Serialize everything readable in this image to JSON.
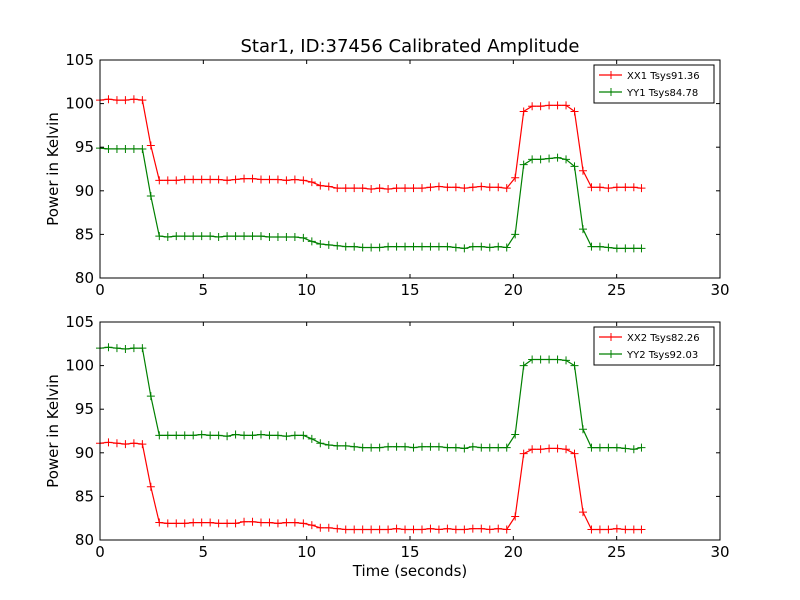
{
  "figure": {
    "title": "Star1, ID:37456 Calibrated Amplitude",
    "xlabel": "Time (seconds)"
  },
  "chart_data": [
    {
      "type": "line",
      "title": "Star1, ID:37456 Calibrated Amplitude",
      "xlabel": "",
      "ylabel": "Power in Kelvin",
      "xlim": [
        0,
        30
      ],
      "ylim": [
        80,
        105
      ],
      "xticks": [
        0,
        5,
        10,
        15,
        20,
        25,
        30
      ],
      "yticks": [
        80,
        85,
        90,
        95,
        100,
        105
      ],
      "grid": false,
      "legend": "top-right",
      "x": [
        0.0,
        0.41,
        0.82,
        1.23,
        1.64,
        2.05,
        2.46,
        2.87,
        3.28,
        3.69,
        4.1,
        4.51,
        4.92,
        5.33,
        5.74,
        6.15,
        6.56,
        6.97,
        7.38,
        7.79,
        8.2,
        8.61,
        9.02,
        9.43,
        9.84,
        10.25,
        10.66,
        11.07,
        11.48,
        11.89,
        12.3,
        12.71,
        13.12,
        13.53,
        13.94,
        14.35,
        14.76,
        15.17,
        15.58,
        15.99,
        16.4,
        16.81,
        17.22,
        17.63,
        18.04,
        18.45,
        18.86,
        19.27,
        19.68,
        20.09,
        20.5,
        20.91,
        21.32,
        21.73,
        22.14,
        22.55,
        22.96,
        23.37,
        23.78,
        24.19,
        24.6,
        25.01,
        25.42,
        25.83,
        26.2
      ],
      "series": [
        {
          "name": "XX1 Tsys91.36",
          "color": "#ff0000",
          "values": [
            100.4,
            100.5,
            100.4,
            100.4,
            100.5,
            100.4,
            95.2,
            91.2,
            91.2,
            91.2,
            91.3,
            91.3,
            91.3,
            91.3,
            91.3,
            91.2,
            91.3,
            91.4,
            91.4,
            91.3,
            91.3,
            91.3,
            91.2,
            91.3,
            91.2,
            91.0,
            90.6,
            90.5,
            90.3,
            90.3,
            90.3,
            90.3,
            90.2,
            90.3,
            90.2,
            90.3,
            90.3,
            90.3,
            90.3,
            90.4,
            90.5,
            90.4,
            90.4,
            90.3,
            90.4,
            90.5,
            90.4,
            90.4,
            90.3,
            91.5,
            99.1,
            99.7,
            99.7,
            99.8,
            99.8,
            99.8,
            99.1,
            92.3,
            90.4,
            90.4,
            90.3,
            90.4,
            90.4,
            90.4,
            90.3
          ]
        },
        {
          "name": "YY1 Tsys84.78",
          "color": "#008000",
          "values": [
            94.9,
            94.8,
            94.8,
            94.8,
            94.8,
            94.8,
            89.4,
            84.8,
            84.7,
            84.8,
            84.8,
            84.8,
            84.8,
            84.8,
            84.7,
            84.8,
            84.8,
            84.8,
            84.8,
            84.8,
            84.7,
            84.7,
            84.7,
            84.7,
            84.6,
            84.2,
            83.9,
            83.8,
            83.7,
            83.6,
            83.6,
            83.5,
            83.5,
            83.5,
            83.6,
            83.6,
            83.6,
            83.6,
            83.6,
            83.6,
            83.6,
            83.6,
            83.5,
            83.4,
            83.6,
            83.6,
            83.5,
            83.6,
            83.5,
            85.0,
            93.0,
            93.6,
            93.6,
            93.7,
            93.8,
            93.6,
            92.8,
            85.6,
            83.6,
            83.6,
            83.5,
            83.4,
            83.4,
            83.4,
            83.4
          ]
        }
      ]
    },
    {
      "type": "line",
      "title": "",
      "xlabel": "Time (seconds)",
      "ylabel": "Power in Kelvin",
      "xlim": [
        0,
        30
      ],
      "ylim": [
        80,
        105
      ],
      "xticks": [
        0,
        5,
        10,
        15,
        20,
        25,
        30
      ],
      "yticks": [
        80,
        85,
        90,
        95,
        100,
        105
      ],
      "grid": false,
      "legend": "top-right",
      "x": [
        0.0,
        0.41,
        0.82,
        1.23,
        1.64,
        2.05,
        2.46,
        2.87,
        3.28,
        3.69,
        4.1,
        4.51,
        4.92,
        5.33,
        5.74,
        6.15,
        6.56,
        6.97,
        7.38,
        7.79,
        8.2,
        8.61,
        9.02,
        9.43,
        9.84,
        10.25,
        10.66,
        11.07,
        11.48,
        11.89,
        12.3,
        12.71,
        13.12,
        13.53,
        13.94,
        14.35,
        14.76,
        15.17,
        15.58,
        15.99,
        16.4,
        16.81,
        17.22,
        17.63,
        18.04,
        18.45,
        18.86,
        19.27,
        19.68,
        20.09,
        20.5,
        20.91,
        21.32,
        21.73,
        22.14,
        22.55,
        22.96,
        23.37,
        23.78,
        24.19,
        24.6,
        25.01,
        25.42,
        25.83,
        26.2
      ],
      "series": [
        {
          "name": "XX2 Tsys82.26",
          "color": "#ff0000",
          "values": [
            91.1,
            91.2,
            91.1,
            91.0,
            91.1,
            91.0,
            86.1,
            82.0,
            81.9,
            81.9,
            81.9,
            82.0,
            82.0,
            82.0,
            81.9,
            81.9,
            81.9,
            82.1,
            82.1,
            82.0,
            82.0,
            81.9,
            82.0,
            82.0,
            81.9,
            81.7,
            81.4,
            81.4,
            81.3,
            81.2,
            81.2,
            81.2,
            81.2,
            81.2,
            81.2,
            81.3,
            81.2,
            81.2,
            81.2,
            81.3,
            81.2,
            81.3,
            81.2,
            81.2,
            81.3,
            81.3,
            81.2,
            81.3,
            81.2,
            82.7,
            89.9,
            90.4,
            90.4,
            90.5,
            90.5,
            90.4,
            89.9,
            83.2,
            81.2,
            81.2,
            81.2,
            81.3,
            81.2,
            81.2,
            81.2
          ]
        },
        {
          "name": "YY2 Tsys92.03",
          "color": "#008000",
          "values": [
            102.0,
            102.1,
            102.0,
            101.9,
            102.0,
            102.0,
            96.5,
            92.0,
            92.0,
            92.0,
            92.0,
            92.0,
            92.1,
            92.0,
            92.0,
            91.9,
            92.1,
            92.0,
            92.0,
            92.1,
            92.0,
            92.0,
            91.9,
            92.0,
            92.0,
            91.6,
            91.1,
            90.9,
            90.8,
            90.8,
            90.7,
            90.6,
            90.6,
            90.6,
            90.7,
            90.7,
            90.7,
            90.6,
            90.7,
            90.7,
            90.7,
            90.6,
            90.6,
            90.5,
            90.7,
            90.6,
            90.6,
            90.6,
            90.6,
            92.1,
            100.0,
            100.7,
            100.7,
            100.7,
            100.7,
            100.6,
            100.0,
            92.7,
            90.6,
            90.6,
            90.6,
            90.6,
            90.5,
            90.4,
            90.6
          ]
        }
      ]
    }
  ]
}
